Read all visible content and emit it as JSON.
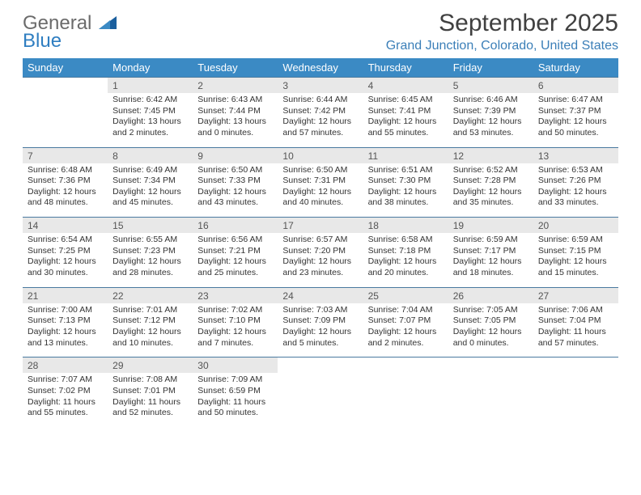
{
  "brand": {
    "line1": "General",
    "line2": "Blue"
  },
  "title": "September 2025",
  "location": "Grand Junction, Colorado, United States",
  "colors": {
    "header_bg": "#3b8ac4",
    "header_text": "#ffffff",
    "daynum_bg": "#e8e8e8",
    "rule": "#4a7aa0",
    "location_color": "#3b7fb8",
    "logo_gray": "#6b6b6b",
    "logo_blue": "#2f7ec1"
  },
  "dow": [
    "Sunday",
    "Monday",
    "Tuesday",
    "Wednesday",
    "Thursday",
    "Friday",
    "Saturday"
  ],
  "weeks": [
    [
      null,
      {
        "n": "1",
        "sr": "Sunrise: 6:42 AM",
        "ss": "Sunset: 7:45 PM",
        "dl1": "Daylight: 13 hours",
        "dl2": "and 2 minutes."
      },
      {
        "n": "2",
        "sr": "Sunrise: 6:43 AM",
        "ss": "Sunset: 7:44 PM",
        "dl1": "Daylight: 13 hours",
        "dl2": "and 0 minutes."
      },
      {
        "n": "3",
        "sr": "Sunrise: 6:44 AM",
        "ss": "Sunset: 7:42 PM",
        "dl1": "Daylight: 12 hours",
        "dl2": "and 57 minutes."
      },
      {
        "n": "4",
        "sr": "Sunrise: 6:45 AM",
        "ss": "Sunset: 7:41 PM",
        "dl1": "Daylight: 12 hours",
        "dl2": "and 55 minutes."
      },
      {
        "n": "5",
        "sr": "Sunrise: 6:46 AM",
        "ss": "Sunset: 7:39 PM",
        "dl1": "Daylight: 12 hours",
        "dl2": "and 53 minutes."
      },
      {
        "n": "6",
        "sr": "Sunrise: 6:47 AM",
        "ss": "Sunset: 7:37 PM",
        "dl1": "Daylight: 12 hours",
        "dl2": "and 50 minutes."
      }
    ],
    [
      {
        "n": "7",
        "sr": "Sunrise: 6:48 AM",
        "ss": "Sunset: 7:36 PM",
        "dl1": "Daylight: 12 hours",
        "dl2": "and 48 minutes."
      },
      {
        "n": "8",
        "sr": "Sunrise: 6:49 AM",
        "ss": "Sunset: 7:34 PM",
        "dl1": "Daylight: 12 hours",
        "dl2": "and 45 minutes."
      },
      {
        "n": "9",
        "sr": "Sunrise: 6:50 AM",
        "ss": "Sunset: 7:33 PM",
        "dl1": "Daylight: 12 hours",
        "dl2": "and 43 minutes."
      },
      {
        "n": "10",
        "sr": "Sunrise: 6:50 AM",
        "ss": "Sunset: 7:31 PM",
        "dl1": "Daylight: 12 hours",
        "dl2": "and 40 minutes."
      },
      {
        "n": "11",
        "sr": "Sunrise: 6:51 AM",
        "ss": "Sunset: 7:30 PM",
        "dl1": "Daylight: 12 hours",
        "dl2": "and 38 minutes."
      },
      {
        "n": "12",
        "sr": "Sunrise: 6:52 AM",
        "ss": "Sunset: 7:28 PM",
        "dl1": "Daylight: 12 hours",
        "dl2": "and 35 minutes."
      },
      {
        "n": "13",
        "sr": "Sunrise: 6:53 AM",
        "ss": "Sunset: 7:26 PM",
        "dl1": "Daylight: 12 hours",
        "dl2": "and 33 minutes."
      }
    ],
    [
      {
        "n": "14",
        "sr": "Sunrise: 6:54 AM",
        "ss": "Sunset: 7:25 PM",
        "dl1": "Daylight: 12 hours",
        "dl2": "and 30 minutes."
      },
      {
        "n": "15",
        "sr": "Sunrise: 6:55 AM",
        "ss": "Sunset: 7:23 PM",
        "dl1": "Daylight: 12 hours",
        "dl2": "and 28 minutes."
      },
      {
        "n": "16",
        "sr": "Sunrise: 6:56 AM",
        "ss": "Sunset: 7:21 PM",
        "dl1": "Daylight: 12 hours",
        "dl2": "and 25 minutes."
      },
      {
        "n": "17",
        "sr": "Sunrise: 6:57 AM",
        "ss": "Sunset: 7:20 PM",
        "dl1": "Daylight: 12 hours",
        "dl2": "and 23 minutes."
      },
      {
        "n": "18",
        "sr": "Sunrise: 6:58 AM",
        "ss": "Sunset: 7:18 PM",
        "dl1": "Daylight: 12 hours",
        "dl2": "and 20 minutes."
      },
      {
        "n": "19",
        "sr": "Sunrise: 6:59 AM",
        "ss": "Sunset: 7:17 PM",
        "dl1": "Daylight: 12 hours",
        "dl2": "and 18 minutes."
      },
      {
        "n": "20",
        "sr": "Sunrise: 6:59 AM",
        "ss": "Sunset: 7:15 PM",
        "dl1": "Daylight: 12 hours",
        "dl2": "and 15 minutes."
      }
    ],
    [
      {
        "n": "21",
        "sr": "Sunrise: 7:00 AM",
        "ss": "Sunset: 7:13 PM",
        "dl1": "Daylight: 12 hours",
        "dl2": "and 13 minutes."
      },
      {
        "n": "22",
        "sr": "Sunrise: 7:01 AM",
        "ss": "Sunset: 7:12 PM",
        "dl1": "Daylight: 12 hours",
        "dl2": "and 10 minutes."
      },
      {
        "n": "23",
        "sr": "Sunrise: 7:02 AM",
        "ss": "Sunset: 7:10 PM",
        "dl1": "Daylight: 12 hours",
        "dl2": "and 7 minutes."
      },
      {
        "n": "24",
        "sr": "Sunrise: 7:03 AM",
        "ss": "Sunset: 7:09 PM",
        "dl1": "Daylight: 12 hours",
        "dl2": "and 5 minutes."
      },
      {
        "n": "25",
        "sr": "Sunrise: 7:04 AM",
        "ss": "Sunset: 7:07 PM",
        "dl1": "Daylight: 12 hours",
        "dl2": "and 2 minutes."
      },
      {
        "n": "26",
        "sr": "Sunrise: 7:05 AM",
        "ss": "Sunset: 7:05 PM",
        "dl1": "Daylight: 12 hours",
        "dl2": "and 0 minutes."
      },
      {
        "n": "27",
        "sr": "Sunrise: 7:06 AM",
        "ss": "Sunset: 7:04 PM",
        "dl1": "Daylight: 11 hours",
        "dl2": "and 57 minutes."
      }
    ],
    [
      {
        "n": "28",
        "sr": "Sunrise: 7:07 AM",
        "ss": "Sunset: 7:02 PM",
        "dl1": "Daylight: 11 hours",
        "dl2": "and 55 minutes."
      },
      {
        "n": "29",
        "sr": "Sunrise: 7:08 AM",
        "ss": "Sunset: 7:01 PM",
        "dl1": "Daylight: 11 hours",
        "dl2": "and 52 minutes."
      },
      {
        "n": "30",
        "sr": "Sunrise: 7:09 AM",
        "ss": "Sunset: 6:59 PM",
        "dl1": "Daylight: 11 hours",
        "dl2": "and 50 minutes."
      },
      null,
      null,
      null,
      null
    ]
  ]
}
